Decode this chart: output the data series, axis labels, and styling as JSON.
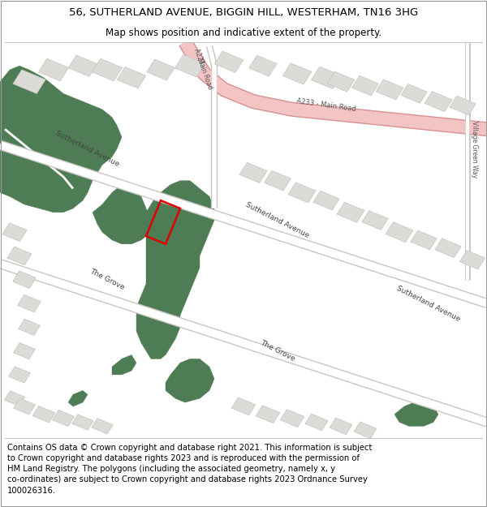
{
  "title": "56, SUTHERLAND AVENUE, BIGGIN HILL, WESTERHAM, TN16 3HG",
  "subtitle": "Map shows position and indicative extent of the property.",
  "footer": "Contains OS data © Crown copyright and database right 2021. This information is subject\nto Crown copyright and database rights 2023 and is reproduced with the permission of\nHM Land Registry. The polygons (including the associated geometry, namely x, y\nco-ordinates) are subject to Crown copyright and database rights 2023 Ordnance Survey\n100026316.",
  "map_bg": "#f2f0ed",
  "road_color": "#ffffff",
  "road_stroke": "#c8c6c3",
  "major_road_fill": "#f2c4c4",
  "major_road_stroke": "#d89090",
  "green_color": "#4e7c55",
  "building_color": "#dddbd7",
  "building_stroke": "#c5c3bf",
  "property_color": "#e00000",
  "title_fontsize": 9.5,
  "subtitle_fontsize": 8.5,
  "footer_fontsize": 7.2
}
